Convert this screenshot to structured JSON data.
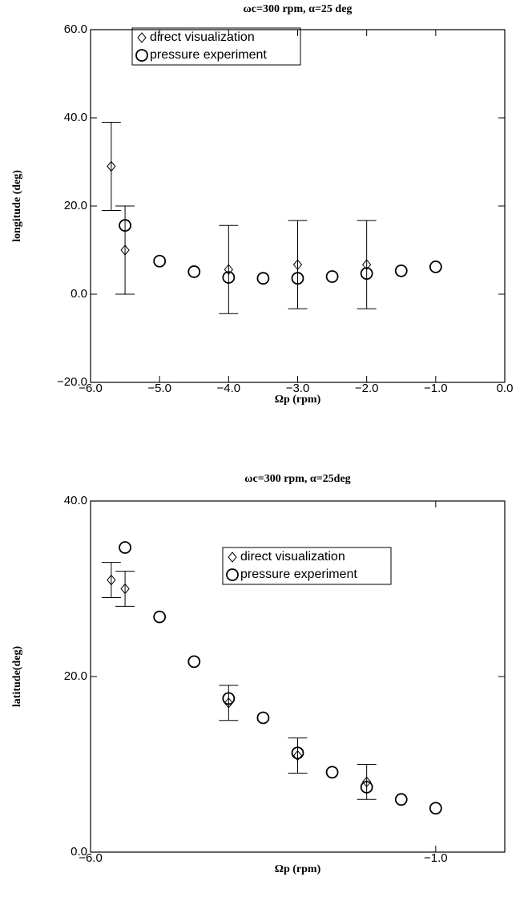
{
  "chart_data": [
    {
      "type": "scatter",
      "title": "ωc=300 rpm, α=25 deg",
      "x_label": "Ωp (rpm)",
      "y_label": "longitude (deg)",
      "xlim": [
        -6,
        0
      ],
      "ylim": [
        -20,
        60
      ],
      "xticks": [
        {
          "value": -6,
          "label": "−6.0"
        },
        {
          "value": -5,
          "label": "−5.0"
        },
        {
          "value": -4,
          "label": "−4.0"
        },
        {
          "value": -3,
          "label": "−3.0"
        },
        {
          "value": -2,
          "label": "−2.0"
        },
        {
          "value": -1,
          "label": "−1.0"
        },
        {
          "value": 0,
          "label": "0.0"
        }
      ],
      "yticks": [
        {
          "value": -20,
          "label": "−20.0"
        },
        {
          "value": 0,
          "label": "0.0"
        },
        {
          "value": 20,
          "label": "20.0"
        },
        {
          "value": 40,
          "label": "40.0"
        },
        {
          "value": 60,
          "label": "60.0"
        }
      ],
      "legend": "upper left",
      "series": [
        {
          "name": "direct visualization",
          "marker": "diamond",
          "color": "#000000",
          "x": [
            -5.7,
            -5.5,
            -4,
            -3,
            -2
          ],
          "values": [
            29,
            10,
            5.6,
            6.7,
            6.7
          ],
          "errors": [
            10,
            10,
            10,
            10,
            10
          ]
        },
        {
          "name": "pressure experiment",
          "marker": "circle",
          "color": "#000000",
          "x": [
            -5.5,
            -5,
            -4.5,
            -4,
            -3.5,
            -3,
            -2.5,
            -2,
            -1.5,
            -1
          ],
          "values": [
            15.6,
            7.5,
            5.1,
            3.8,
            3.6,
            3.6,
            4,
            4.7,
            5.3,
            6.2
          ]
        }
      ]
    },
    {
      "type": "scatter",
      "title": "ωc=300 rpm, α=25deg",
      "x_label": "Ωp (rpm)",
      "y_label": "latitude(deg)",
      "xlim": [
        -6,
        0
      ],
      "ylim": [
        0,
        40
      ],
      "xticks": [
        {
          "value": -6,
          "label": "−6.0"
        },
        {
          "value": -1,
          "label": "−1.0"
        }
      ],
      "yticks": [
        {
          "value": 0,
          "label": "0.0"
        },
        {
          "value": 20,
          "label": "20.0"
        },
        {
          "value": 40,
          "label": "40.0"
        }
      ],
      "legend": "upper right",
      "series": [
        {
          "name": "direct visualization",
          "marker": "diamond",
          "color": "#000000",
          "x": [
            -5.7,
            -5.5,
            -4,
            -3,
            -2
          ],
          "values": [
            31,
            30,
            17,
            11,
            8
          ],
          "errors": [
            2,
            2,
            2,
            2,
            2
          ]
        },
        {
          "name": "pressure experiment",
          "marker": "circle",
          "color": "#000000",
          "x": [
            -5.5,
            -5,
            -4.5,
            -4,
            -3.5,
            -3,
            -2.5,
            -2,
            -1.5,
            -1
          ],
          "values": [
            34.7,
            26.8,
            21.7,
            17.5,
            15.3,
            11.3,
            9.1,
            7.4,
            6.0,
            5.0
          ]
        }
      ]
    }
  ]
}
